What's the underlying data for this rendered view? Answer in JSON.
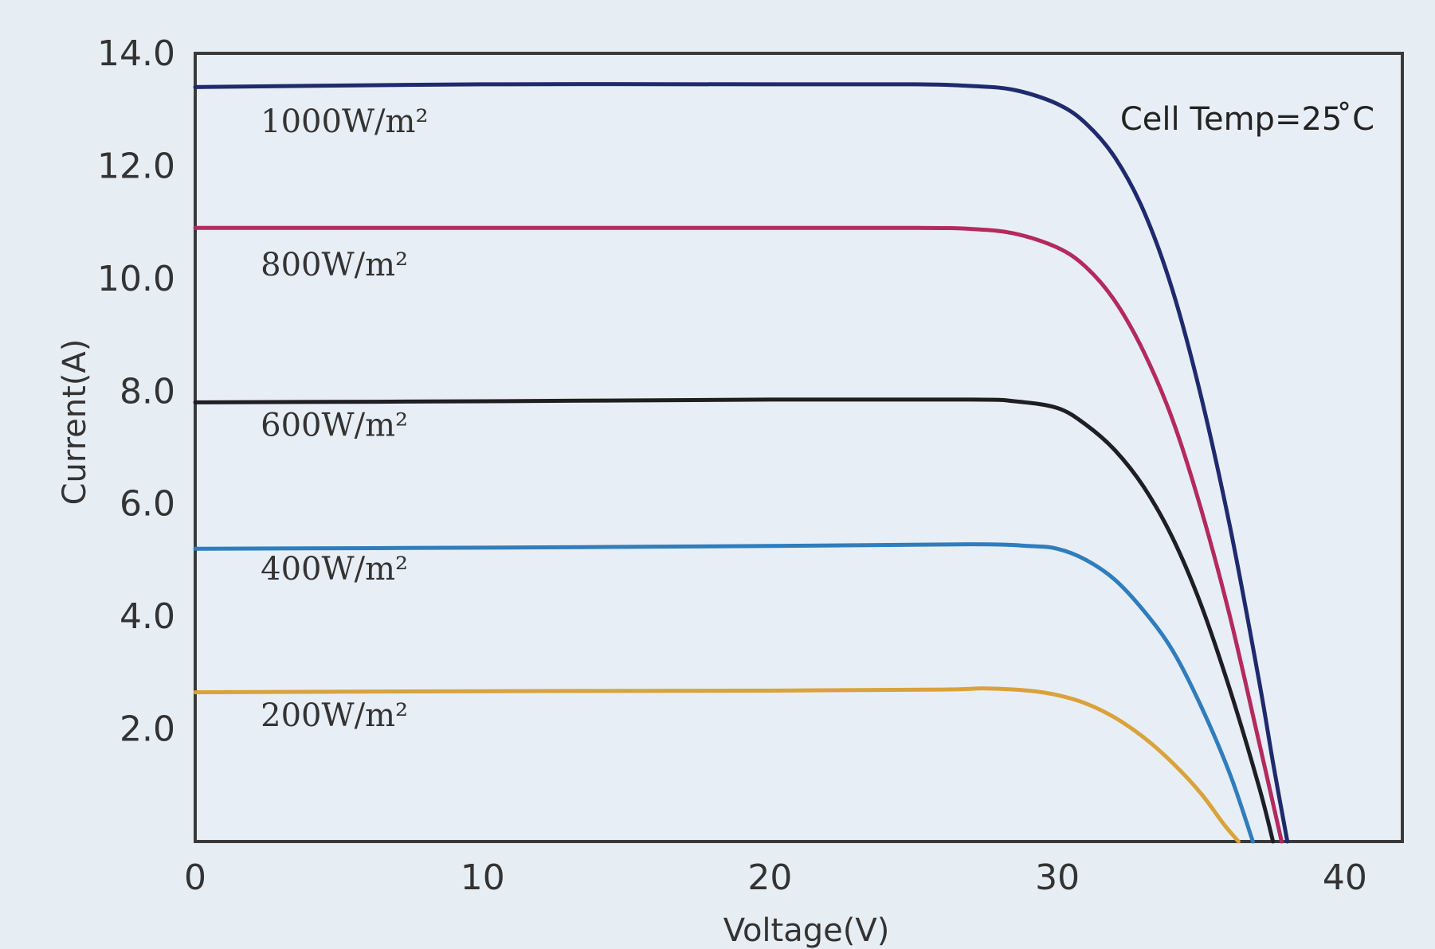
{
  "chart_data": {
    "type": "line",
    "title": "",
    "xlabel": "Voltage(V)",
    "ylabel": "Current(A)",
    "xlim": [
      0,
      42
    ],
    "ylim": [
      0,
      14
    ],
    "xticks": [
      0,
      10,
      20,
      30,
      40
    ],
    "yticks": [
      2,
      4,
      6,
      8,
      10,
      12,
      14
    ],
    "xtick_labels": [
      "0",
      "10",
      "20",
      "30",
      "40"
    ],
    "ytick_labels": [
      "2.0",
      "4.0",
      "6.0",
      "8.0",
      "10.0",
      "12.0",
      "14.0"
    ],
    "grid": false,
    "legend": "none",
    "annotation": "Cell Temp=25 ̊C",
    "series": [
      {
        "name": "1000W/m²",
        "color": "#1f2a6e",
        "label_at": [
          2,
          12.8
        ],
        "points": [
          [
            0,
            13.4
          ],
          [
            10,
            13.45
          ],
          [
            20,
            13.45
          ],
          [
            25,
            13.45
          ],
          [
            27,
            13.42
          ],
          [
            28.5,
            13.35
          ],
          [
            30,
            13.1
          ],
          [
            31,
            12.75
          ],
          [
            32,
            12.15
          ],
          [
            33,
            11.2
          ],
          [
            34,
            9.8
          ],
          [
            35,
            7.9
          ],
          [
            36,
            5.6
          ],
          [
            37,
            2.9
          ],
          [
            37.5,
            1.4
          ],
          [
            38,
            0
          ]
        ]
      },
      {
        "name": "800W/m²",
        "color": "#b32a5e",
        "label_at": [
          2,
          10.25
        ],
        "points": [
          [
            0,
            10.9
          ],
          [
            10,
            10.9
          ],
          [
            20,
            10.9
          ],
          [
            25,
            10.9
          ],
          [
            27,
            10.88
          ],
          [
            28.5,
            10.8
          ],
          [
            30,
            10.55
          ],
          [
            31,
            10.2
          ],
          [
            32,
            9.6
          ],
          [
            33,
            8.7
          ],
          [
            34,
            7.5
          ],
          [
            35,
            5.9
          ],
          [
            36,
            4.0
          ],
          [
            37,
            1.8
          ],
          [
            37.8,
            0
          ]
        ]
      },
      {
        "name": "600W/m²",
        "color": "#1e1e24",
        "label_at": [
          2,
          7.4
        ],
        "points": [
          [
            0,
            7.8
          ],
          [
            10,
            7.82
          ],
          [
            20,
            7.85
          ],
          [
            27,
            7.85
          ],
          [
            28.5,
            7.82
          ],
          [
            30,
            7.7
          ],
          [
            31,
            7.4
          ],
          [
            32,
            6.95
          ],
          [
            33,
            6.3
          ],
          [
            34,
            5.4
          ],
          [
            35,
            4.2
          ],
          [
            36,
            2.7
          ],
          [
            37,
            1.0
          ],
          [
            37.5,
            0
          ]
        ]
      },
      {
        "name": "400W/m²",
        "color": "#2f7dbd",
        "label_at": [
          2,
          4.85
        ],
        "points": [
          [
            0,
            5.2
          ],
          [
            10,
            5.22
          ],
          [
            20,
            5.25
          ],
          [
            27,
            5.28
          ],
          [
            29,
            5.25
          ],
          [
            30,
            5.2
          ],
          [
            31,
            5.0
          ],
          [
            32,
            4.65
          ],
          [
            33,
            4.1
          ],
          [
            34,
            3.4
          ],
          [
            35,
            2.4
          ],
          [
            36,
            1.2
          ],
          [
            36.8,
            0
          ]
        ]
      },
      {
        "name": "200W/m²",
        "color": "#d9a23a",
        "label_at": [
          2,
          2.25
        ],
        "points": [
          [
            0,
            2.65
          ],
          [
            10,
            2.67
          ],
          [
            20,
            2.68
          ],
          [
            26,
            2.7
          ],
          [
            27.5,
            2.72
          ],
          [
            29,
            2.68
          ],
          [
            30,
            2.6
          ],
          [
            31,
            2.45
          ],
          [
            32,
            2.2
          ],
          [
            33,
            1.85
          ],
          [
            34,
            1.4
          ],
          [
            35,
            0.85
          ],
          [
            35.8,
            0.3
          ],
          [
            36.3,
            0
          ]
        ]
      }
    ]
  }
}
